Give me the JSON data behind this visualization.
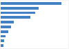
{
  "values": [
    61.1,
    38.3,
    34.5,
    29.8,
    13.1,
    10.35,
    7.3,
    5.2,
    3.8,
    3.0
  ],
  "bar_color": "#4281c4",
  "background_color": "#f2f2f2",
  "plot_bg_color": "#ffffff",
  "bar_height": 0.55,
  "grid_color": "#d9d9d9",
  "xlim_max": 68
}
